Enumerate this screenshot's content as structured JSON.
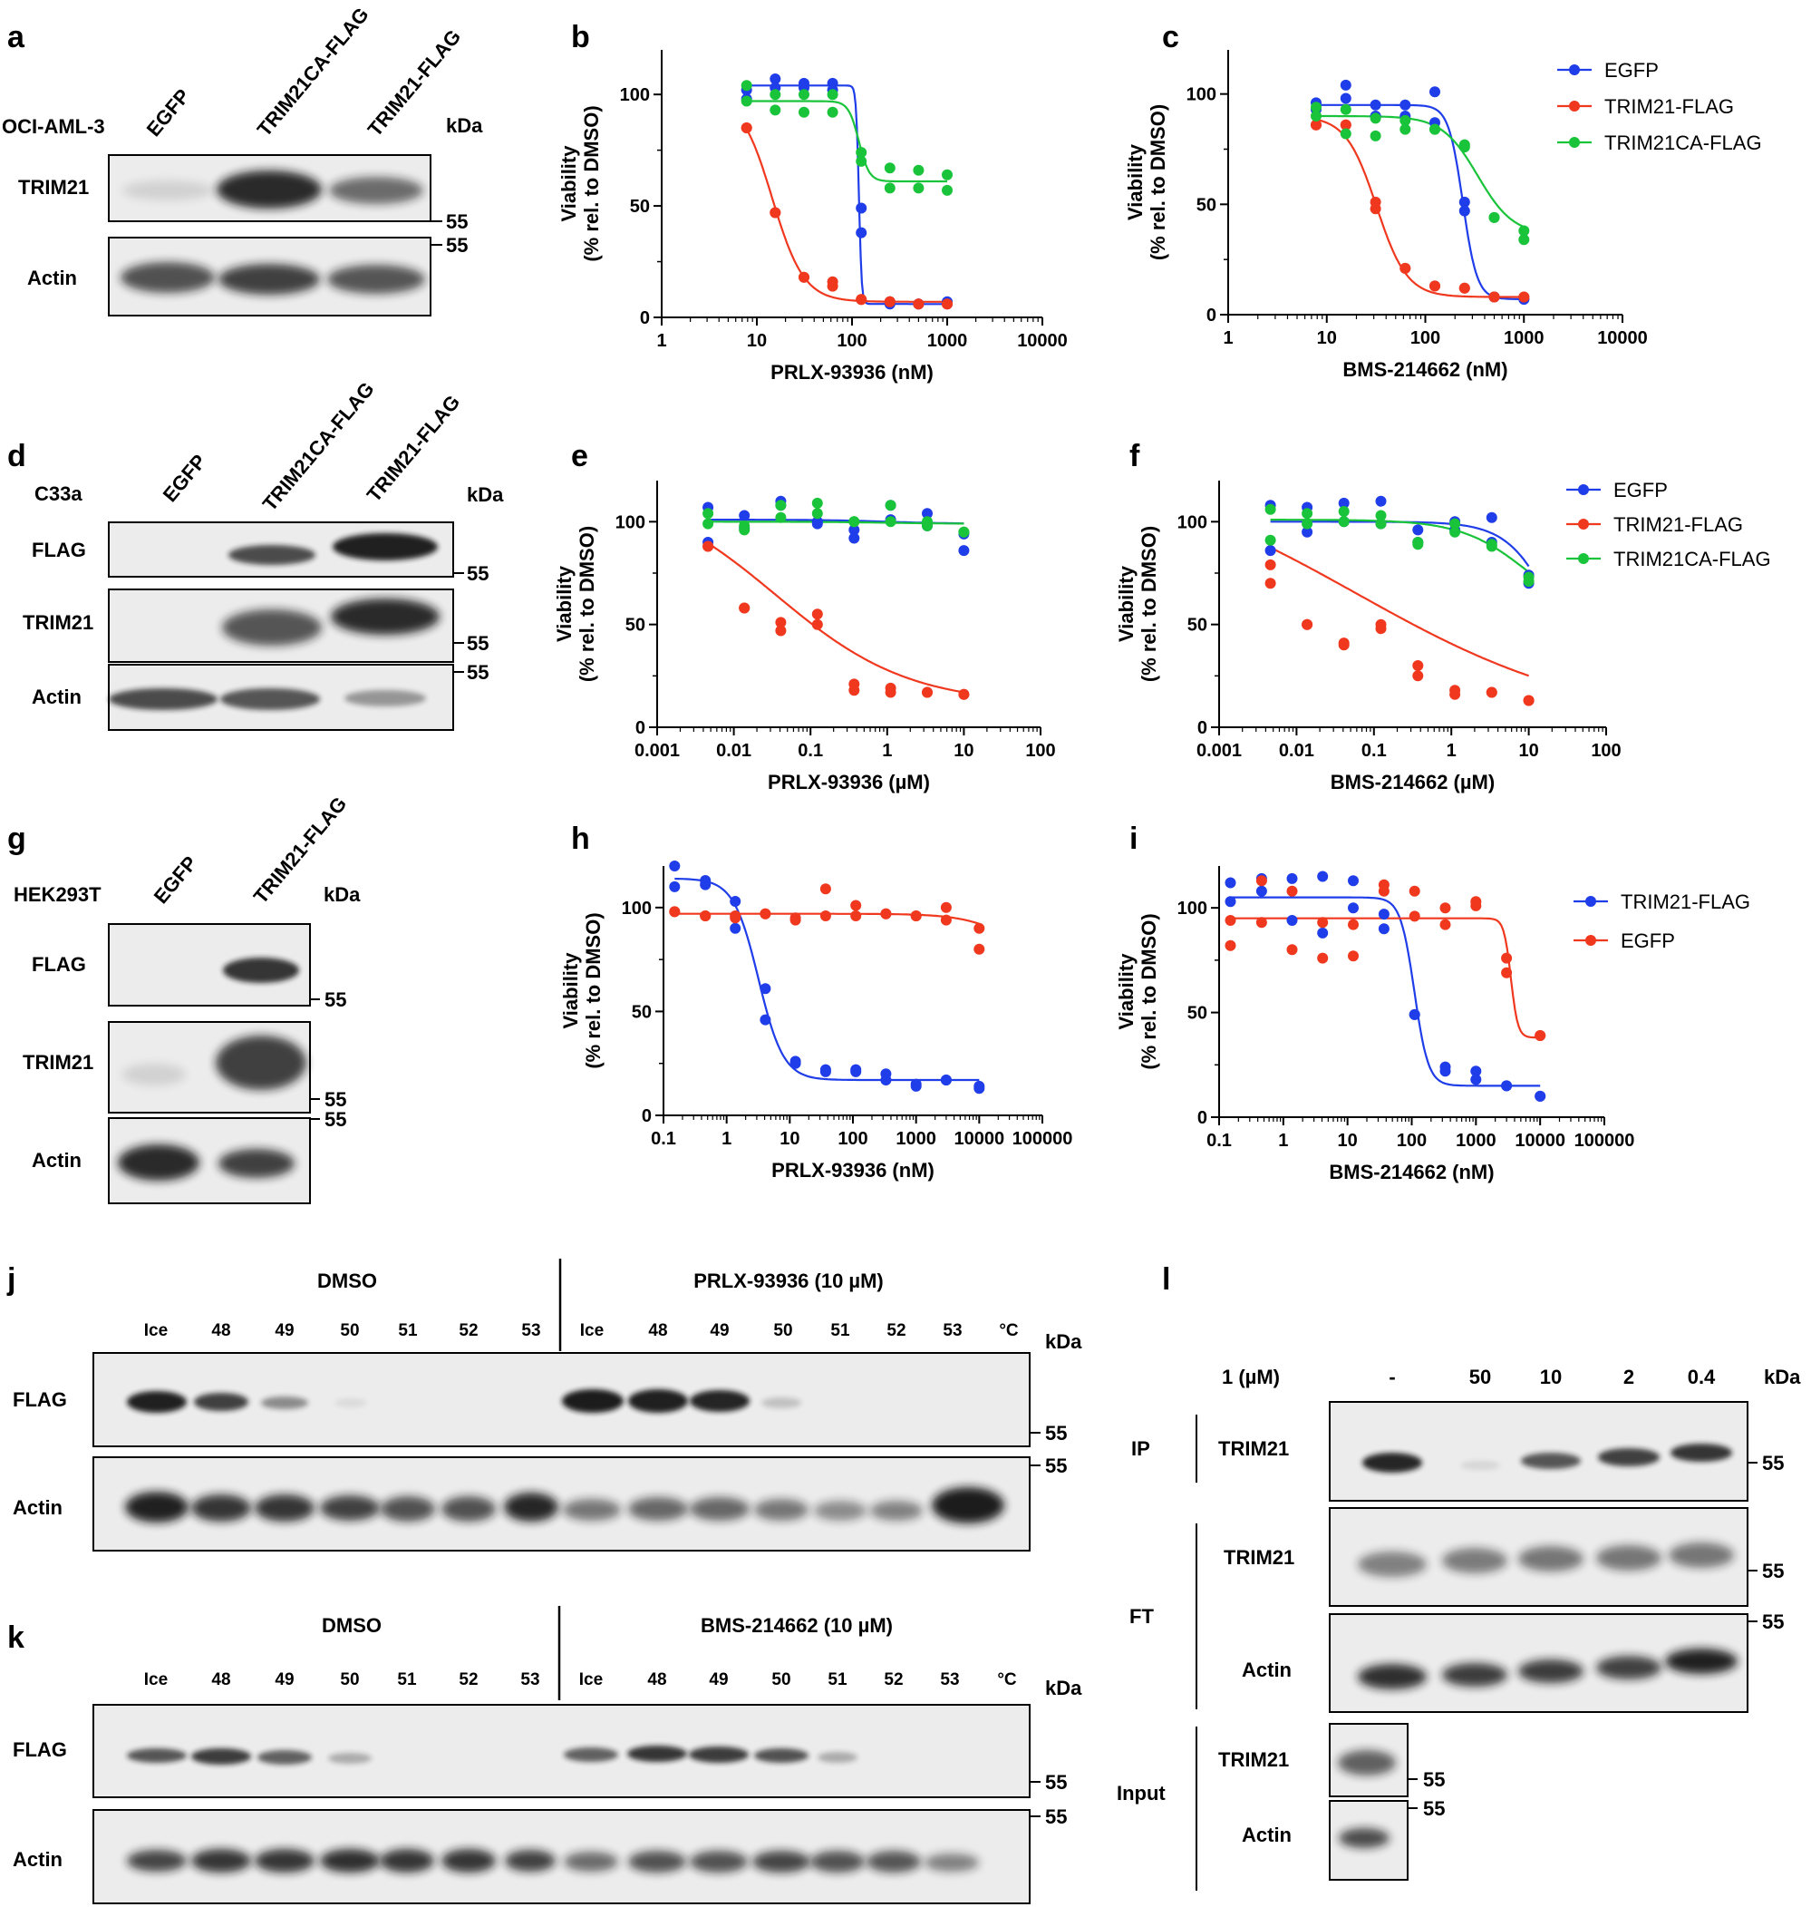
{
  "panels": {
    "a": {
      "letter": "a",
      "cell_line": "OCI-AML-3",
      "kda": "kDa",
      "marker": "55",
      "lanes": [
        "EGFP",
        "TRIM21CA-FLAG",
        "TRIM21-FLAG"
      ],
      "blots": [
        "TRIM21",
        "Actin"
      ]
    },
    "d": {
      "letter": "d",
      "cell_line": "C33a",
      "kda": "kDa",
      "marker": "55",
      "lanes": [
        "EGFP",
        "TRIM21CA-FLAG",
        "TRIM21-FLAG"
      ],
      "blots": [
        "FLAG",
        "TRIM21",
        "Actin"
      ]
    },
    "g": {
      "letter": "g",
      "cell_line": "HEK293T",
      "kda": "kDa",
      "marker": "55",
      "lanes": [
        "EGFP",
        "TRIM21-FLAG"
      ],
      "blots": [
        "FLAG",
        "TRIM21",
        "Actin"
      ]
    },
    "j": {
      "letter": "j",
      "kda": "kDa",
      "marker": "55",
      "unit": "°C",
      "groups": [
        "DMSO",
        "PRLX-93936 (10 µM)"
      ],
      "temps": [
        "Ice",
        "48",
        "49",
        "50",
        "51",
        "52",
        "53"
      ],
      "blots": [
        "FLAG",
        "Actin"
      ]
    },
    "k": {
      "letter": "k",
      "kda": "kDa",
      "marker": "55",
      "unit": "°C",
      "groups": [
        "DMSO",
        "BMS-214662 (10 µM)"
      ],
      "temps": [
        "Ice",
        "48",
        "49",
        "50",
        "51",
        "52",
        "53"
      ],
      "blots": [
        "FLAG",
        "Actin"
      ]
    },
    "l": {
      "letter": "l",
      "kda": "kDa",
      "marker": "55",
      "compound_label": "1 (µM)",
      "doses": [
        "-",
        "50",
        "10",
        "2",
        "0.4"
      ],
      "sections": [
        "IP",
        "FT",
        "Input"
      ],
      "blots": [
        "TRIM21",
        "TRIM21",
        "Actin",
        "TRIM21",
        "Actin"
      ]
    }
  },
  "legends": {
    "bc": [
      "EGFP",
      "TRIM21-FLAG",
      "TRIM21CA-FLAG"
    ],
    "ef": [
      "EGFP",
      "TRIM21-FLAG",
      "TRIM21CA-FLAG"
    ],
    "hi": [
      "TRIM21-FLAG",
      "EGFP"
    ]
  },
  "colors": {
    "blue": "#1f3de8",
    "red": "#f0381f",
    "green": "#19c43a",
    "blot_bg": "#ececec",
    "band": "#181818"
  },
  "chart_data": [
    {
      "id": "b",
      "type": "scatter",
      "fit": "four-parameter logistic",
      "xlabel": "PRLX-93936 (nM)",
      "ylabel": "Viability\n(% rel. to DMSO)",
      "xscale": "log",
      "xlim": [
        1,
        10000
      ],
      "ylim": [
        0,
        120
      ],
      "xticks": [
        "1",
        "10",
        "100",
        "1000",
        "10000"
      ],
      "yticks": [
        "0",
        "50",
        "100"
      ],
      "series": [
        {
          "name": "EGFP",
          "color": "#1f3de8",
          "x": [
            7.8,
            7.8,
            15.6,
            15.6,
            31.3,
            31.3,
            62.5,
            62.5,
            125,
            125,
            250,
            250,
            500,
            500,
            1000,
            1000
          ],
          "y": [
            98,
            102,
            107,
            103,
            105,
            103,
            105,
            102,
            38,
            49,
            7,
            6,
            6,
            6,
            7,
            6
          ],
          "fit": [
            104,
            6,
            118,
            30
          ]
        },
        {
          "name": "TRIM21-FLAG",
          "color": "#f0381f",
          "x": [
            7.8,
            7.8,
            15.6,
            15.6,
            31.3,
            31.3,
            62.5,
            62.5,
            125,
            125,
            250,
            250,
            500,
            500,
            1000,
            1000
          ],
          "y": [
            85,
            85,
            47,
            47,
            18,
            18,
            16,
            14,
            8,
            8,
            7,
            7,
            6,
            6,
            6,
            6
          ],
          "fit": [
            100,
            7,
            14.5,
            2.6
          ]
        },
        {
          "name": "TRIM21CA-FLAG",
          "color": "#19c43a",
          "x": [
            7.8,
            7.8,
            15.6,
            15.6,
            31.3,
            31.3,
            62.5,
            62.5,
            125,
            125,
            250,
            250,
            500,
            500,
            1000,
            1000
          ],
          "y": [
            104,
            97,
            93,
            100,
            92,
            100,
            92,
            100,
            74,
            70,
            67,
            58,
            66,
            58,
            64,
            57
          ],
          "fit": [
            97,
            61,
            118,
            8
          ]
        }
      ]
    },
    {
      "id": "c",
      "type": "scatter",
      "fit": "four-parameter logistic",
      "xlabel": "BMS-214662 (nM)",
      "ylabel": "Viability\n(% rel. to DMSO)",
      "xscale": "log",
      "xlim": [
        1,
        10000
      ],
      "ylim": [
        0,
        120
      ],
      "xticks": [
        "1",
        "10",
        "100",
        "1000",
        "10000"
      ],
      "yticks": [
        "0",
        "50",
        "100"
      ],
      "series": [
        {
          "name": "EGFP",
          "color": "#1f3de8",
          "x": [
            7.8,
            7.8,
            15.6,
            15.6,
            31.3,
            31.3,
            62.5,
            62.5,
            125,
            125,
            250,
            250,
            500,
            500,
            1000,
            1000
          ],
          "y": [
            96,
            93,
            104,
            98,
            90,
            95,
            95,
            90,
            101,
            87,
            51,
            47,
            8,
            8,
            7,
            7
          ],
          "fit": [
            95,
            7,
            240,
            6
          ]
        },
        {
          "name": "TRIM21-FLAG",
          "color": "#f0381f",
          "x": [
            7.8,
            7.8,
            15.6,
            15.6,
            31.3,
            31.3,
            62.5,
            62.5,
            125,
            125,
            250,
            250,
            500,
            500,
            1000,
            1000
          ],
          "y": [
            86,
            86,
            86,
            86,
            51,
            48,
            21,
            21,
            13,
            13,
            12,
            12,
            8,
            8,
            8,
            8
          ],
          "fit": [
            90,
            8,
            32,
            2.8
          ]
        },
        {
          "name": "TRIM21CA-FLAG",
          "color": "#19c43a",
          "x": [
            7.8,
            7.8,
            15.6,
            15.6,
            31.3,
            31.3,
            62.5,
            62.5,
            125,
            125,
            250,
            250,
            500,
            500,
            1000,
            1000
          ],
          "y": [
            94,
            90,
            93,
            82,
            89,
            81,
            88,
            84,
            84,
            84,
            77,
            76,
            44,
            44,
            38,
            34
          ],
          "fit": [
            90,
            36,
            340,
            2.4
          ]
        }
      ]
    },
    {
      "id": "e",
      "type": "scatter",
      "fit": "four-parameter logistic",
      "xlabel": "PRLX-93936 (µM)",
      "ylabel": "Viability\n(% rel. to DMSO)",
      "xscale": "log",
      "xlim": [
        0.001,
        100
      ],
      "ylim": [
        0,
        120
      ],
      "xticks": [
        "0.001",
        "0.01",
        "0.1",
        "1",
        "10",
        "100"
      ],
      "yticks": [
        "0",
        "50",
        "100"
      ],
      "series": [
        {
          "name": "EGFP",
          "color": "#1f3de8",
          "x": [
            0.0046,
            0.0046,
            0.0137,
            0.0137,
            0.041,
            0.041,
            0.123,
            0.123,
            0.37,
            0.37,
            1.11,
            1.11,
            3.33,
            3.33,
            10,
            10
          ],
          "y": [
            107,
            90,
            103,
            97,
            110,
            108,
            100,
            99,
            96,
            92,
            108,
            101,
            104,
            98,
            94,
            86
          ],
          "fit": [
            101,
            99,
            1,
            1
          ]
        },
        {
          "name": "TRIM21-FLAG",
          "color": "#f0381f",
          "x": [
            0.0046,
            0.0046,
            0.0137,
            0.0137,
            0.041,
            0.041,
            0.123,
            0.123,
            0.37,
            0.37,
            1.11,
            1.11,
            3.33,
            3.33,
            10,
            10
          ],
          "y": [
            88,
            88,
            58,
            58,
            51,
            47,
            55,
            50,
            21,
            18,
            19,
            17,
            17,
            17,
            16,
            16
          ],
          "fit": [
            118,
            11,
            0.035,
            0.5
          ]
        },
        {
          "name": "TRIM21CA-FLAG",
          "color": "#19c43a",
          "x": [
            0.0046,
            0.0046,
            0.0137,
            0.0137,
            0.041,
            0.041,
            0.123,
            0.123,
            0.37,
            0.37,
            1.11,
            1.11,
            3.33,
            3.33,
            10,
            10
          ],
          "y": [
            104,
            99,
            98,
            96,
            108,
            102,
            109,
            104,
            100,
            100,
            108,
            100,
            98,
            100,
            95,
            95
          ],
          "fit": [
            100,
            99,
            1,
            1
          ]
        }
      ]
    },
    {
      "id": "f",
      "type": "scatter",
      "fit": "four-parameter logistic",
      "xlabel": "BMS-214662 (µM)",
      "ylabel": "Viability\n(% rel. to DMSO)",
      "xscale": "log",
      "xlim": [
        0.001,
        100
      ],
      "ylim": [
        0,
        120
      ],
      "xticks": [
        "0.001",
        "0.01",
        "0.1",
        "1",
        "10",
        "100"
      ],
      "yticks": [
        "0",
        "50",
        "100"
      ],
      "series": [
        {
          "name": "EGFP",
          "color": "#1f3de8",
          "x": [
            0.0046,
            0.0046,
            0.0137,
            0.0137,
            0.041,
            0.041,
            0.123,
            0.123,
            0.37,
            0.37,
            1.11,
            1.11,
            3.33,
            3.33,
            10,
            10
          ],
          "y": [
            108,
            86,
            107,
            95,
            109,
            100,
            110,
            99,
            96,
            90,
            100,
            96,
            102,
            90,
            74,
            70
          ],
          "fit": [
            100,
            0,
            25,
            1.4
          ]
        },
        {
          "name": "TRIM21-FLAG",
          "color": "#f0381f",
          "x": [
            0.0046,
            0.0046,
            0.0137,
            0.0137,
            0.041,
            0.041,
            0.123,
            0.123,
            0.37,
            0.37,
            1.11,
            1.11,
            3.33,
            3.33,
            10,
            10
          ],
          "y": [
            79,
            70,
            50,
            50,
            41,
            40,
            50,
            48,
            30,
            25,
            18,
            16,
            17,
            17,
            13,
            13
          ],
          "fit": [
            130,
            0,
            0.06,
            0.28
          ]
        },
        {
          "name": "TRIM21CA-FLAG",
          "color": "#19c43a",
          "x": [
            0.0046,
            0.0046,
            0.0137,
            0.0137,
            0.041,
            0.041,
            0.123,
            0.123,
            0.37,
            0.37,
            1.11,
            1.11,
            3.33,
            3.33,
            10,
            10
          ],
          "y": [
            106,
            91,
            104,
            99,
            105,
            100,
            103,
            99,
            90,
            89,
            99,
            95,
            89,
            88,
            73,
            71
          ],
          "fit": [
            101,
            50,
            10,
            1
          ]
        }
      ]
    },
    {
      "id": "h",
      "type": "scatter",
      "fit": "four-parameter logistic",
      "xlabel": "PRLX-93936 (nM)",
      "ylabel": "Viability\n(% rel. to DMSO)",
      "xscale": "log",
      "xlim": [
        0.1,
        100000
      ],
      "ylim": [
        0,
        120
      ],
      "xticks": [
        "0.1",
        "1",
        "10",
        "100",
        "1000",
        "10000",
        "100000"
      ],
      "yticks": [
        "0",
        "50",
        "100"
      ],
      "series": [
        {
          "name": "TRIM21-FLAG",
          "color": "#1f3de8",
          "x": [
            0.15,
            0.15,
            0.46,
            0.46,
            1.37,
            1.37,
            4.1,
            4.1,
            12.3,
            12.3,
            37,
            37,
            111,
            111,
            333,
            333,
            1000,
            1000,
            3000,
            3000,
            10000,
            10000
          ],
          "y": [
            120,
            110,
            113,
            111,
            103,
            90,
            61,
            46,
            26,
            25,
            22,
            21,
            22,
            21,
            20,
            17,
            15,
            14,
            17,
            17,
            14,
            13
          ],
          "fit": [
            114,
            17,
            3.2,
            2.2
          ]
        },
        {
          "name": "EGFP",
          "color": "#f0381f",
          "x": [
            0.15,
            0.15,
            0.46,
            0.46,
            1.37,
            1.37,
            4.1,
            4.1,
            12.3,
            12.3,
            37,
            37,
            111,
            111,
            333,
            333,
            1000,
            1000,
            3000,
            3000,
            10000,
            10000
          ],
          "y": [
            98,
            98,
            96,
            96,
            96,
            95,
            97,
            97,
            95,
            94,
            109,
            96,
            101,
            96,
            97,
            97,
            96,
            96,
            100,
            94,
            90,
            80
          ],
          "fit": [
            97,
            70,
            40000,
            1.1
          ]
        }
      ]
    },
    {
      "id": "i",
      "type": "scatter",
      "fit": "four-parameter logistic",
      "xlabel": "BMS-214662 (nM)",
      "ylabel": "Viability\n(% rel. to DMSO)",
      "xscale": "log",
      "xlim": [
        0.1,
        100000
      ],
      "ylim": [
        0,
        120
      ],
      "xticks": [
        "0.1",
        "1",
        "10",
        "100",
        "1000",
        "10000",
        "100000"
      ],
      "yticks": [
        "0",
        "50",
        "100"
      ],
      "series": [
        {
          "name": "TRIM21-FLAG",
          "color": "#1f3de8",
          "x": [
            0.15,
            0.15,
            0.46,
            0.46,
            1.37,
            1.37,
            4.1,
            4.1,
            12.3,
            12.3,
            37,
            37,
            111,
            111,
            333,
            333,
            1000,
            1000,
            3000,
            3000,
            10000,
            10000
          ],
          "y": [
            112,
            103,
            114,
            108,
            114,
            94,
            115,
            88,
            113,
            100,
            97,
            90,
            49,
            49,
            24,
            22,
            22,
            18,
            15,
            15,
            10,
            10
          ],
          "fit": [
            105,
            15,
            110,
            4
          ]
        },
        {
          "name": "EGFP",
          "color": "#f0381f",
          "x": [
            0.15,
            0.15,
            0.46,
            0.46,
            1.37,
            1.37,
            4.1,
            4.1,
            12.3,
            12.3,
            37,
            37,
            111,
            111,
            333,
            333,
            1000,
            1000,
            3000,
            3000,
            10000,
            10000
          ],
          "y": [
            94,
            82,
            113,
            93,
            108,
            80,
            93,
            76,
            92,
            77,
            111,
            108,
            108,
            96,
            100,
            92,
            103,
            101,
            76,
            69,
            39,
            39
          ],
          "fit": [
            95,
            38,
            3500,
            8
          ]
        }
      ]
    }
  ]
}
